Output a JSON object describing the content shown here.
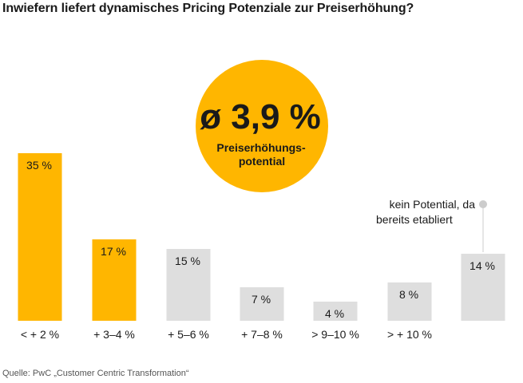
{
  "title": "Inwiefern liefert dynamisches Pricing Potenziale zur Preiserhöhung?",
  "source": "Quelle: PwC „Customer Centric Transformation“",
  "colors": {
    "highlight": "#FFB600",
    "neutral": "#DEDEDE",
    "text": "#1a1a1a",
    "connector": "#CCCCCC"
  },
  "callout": {
    "value": "ø 3,9 %",
    "caption_lines": [
      "Preiserhöhungs-",
      "potential"
    ]
  },
  "note": {
    "lines": [
      "kein Potential, da",
      "bereits etabliert"
    ]
  },
  "chart_data": {
    "type": "bar",
    "title": "Inwiefern liefert dynamisches Pricing Potenziale zur Preiserhöhung?",
    "xlabel": "",
    "ylabel": "",
    "ylim": [
      0,
      35
    ],
    "grid": false,
    "legend": "none",
    "categories": [
      "< + 2 %",
      "+ 3–4 %",
      "+ 5–6 %",
      "+ 7–8 %",
      "> 9–10 %",
      "> + 10 %",
      ""
    ],
    "values": [
      35,
      17,
      15,
      7,
      4,
      8,
      14
    ],
    "value_labels": [
      "35 %",
      "17 %",
      "15 %",
      "7 %",
      "4 %",
      "8 %",
      "14 %"
    ],
    "highlighted": [
      true,
      true,
      false,
      false,
      false,
      false,
      false
    ],
    "annotations": [
      {
        "text": "ø 3,9 %",
        "caption": "Preiserhöhungspotential"
      },
      {
        "text": "kein Potential, da bereits etabliert",
        "bar_index": 6
      }
    ]
  }
}
